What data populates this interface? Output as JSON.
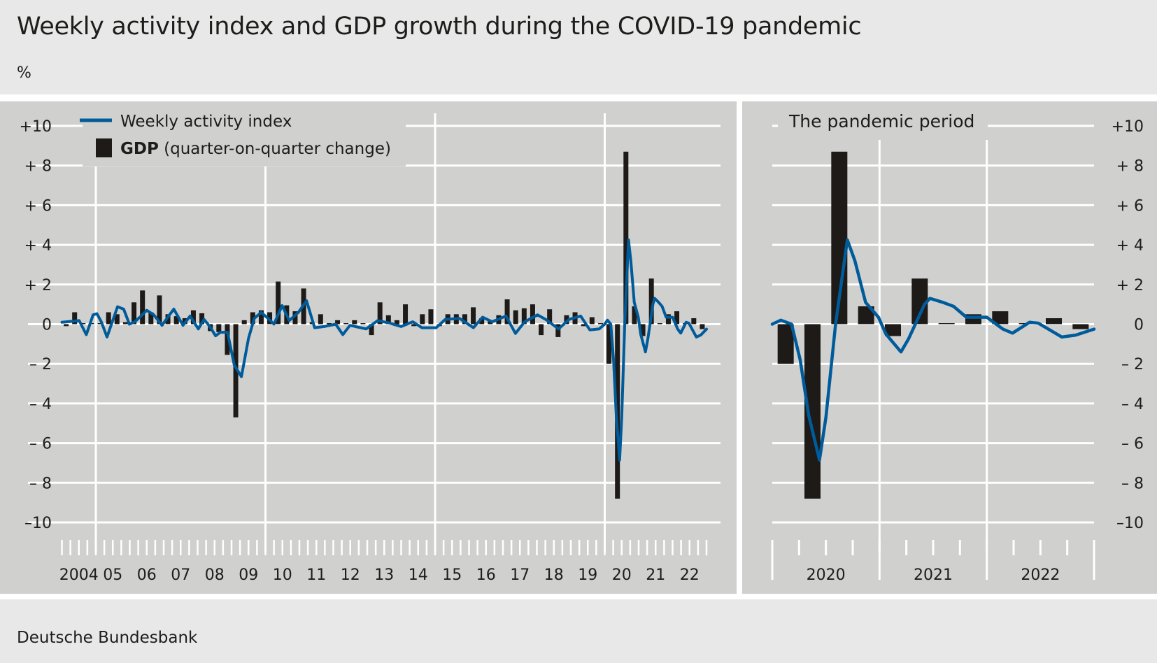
{
  "title": "Weekly activity index and GDP growth during the COVID-19 pandemic",
  "unit": "%",
  "source": "Deutsche Bundesbank",
  "colors": {
    "weekly_index": "#005b9a",
    "gdp": "#1d1a17",
    "panel_bg": "#d0d0cf",
    "page_bg": "#e8e8e8",
    "grid": "#ffffff"
  },
  "chart_data": [
    {
      "type": "bar+line",
      "legend": {
        "line_label": "Weekly activity index",
        "bar_label_bold": "GDP",
        "bar_label_rest": " (quarter-on-quarter change)",
        "placement": "top-left"
      },
      "ylim": [
        -10,
        10
      ],
      "y_ticks": [
        10,
        8,
        6,
        4,
        2,
        0,
        -2,
        -4,
        -6,
        -8,
        -10
      ],
      "y_tick_labels": [
        "+10",
        "+  8",
        "+  6",
        "+  4",
        "+  2",
        "0",
        "–  2",
        "–  4",
        "–  6",
        "–  8",
        "–10"
      ],
      "xlim": [
        2004,
        2023
      ],
      "x_tick_labels": [
        "2004",
        "05",
        "06",
        "07",
        "08",
        "09",
        "10",
        "11",
        "12",
        "13",
        "14",
        "15",
        "16",
        "17",
        "18",
        "19",
        "20",
        "21",
        "22"
      ],
      "grid": true,
      "gdp_quarters_start": "2004 Q1",
      "gdp": [
        -0.1,
        0.6,
        0,
        0,
        0,
        0.6,
        0.5,
        0.1,
        1.1,
        1.7,
        0.6,
        1.45,
        0.5,
        0.4,
        0.3,
        0.7,
        0.55,
        -0.35,
        -0.4,
        -1.55,
        -4.7,
        0.2,
        0.6,
        0.7,
        0.6,
        2.15,
        0.95,
        0.65,
        1.8,
        0.1,
        0.5,
        0,
        0.2,
        0,
        0.2,
        0,
        -0.55,
        1.1,
        0.45,
        0.2,
        1.0,
        -0.1,
        0.5,
        0.75,
        -0.1,
        0.5,
        0.5,
        0.5,
        0.85,
        0.3,
        0.2,
        0.45,
        1.25,
        0.7,
        0.8,
        1.0,
        -0.55,
        0.75,
        -0.65,
        0.45,
        0.6,
        -0.1,
        0.35,
        0,
        -2.0,
        -8.8,
        8.7,
        0.9,
        -0.6,
        2.3,
        0.05,
        0.5,
        0.65,
        0.05,
        0.3,
        -0.25
      ],
      "weekly_index": [
        [
          2004.0,
          0.1
        ],
        [
          2004.51,
          0.18
        ],
        [
          2004.72,
          -0.53
        ],
        [
          2004.92,
          0.47
        ],
        [
          2005.03,
          0.53
        ],
        [
          2005.16,
          0.12
        ],
        [
          2005.33,
          -0.65
        ],
        [
          2005.64,
          0.88
        ],
        [
          2005.82,
          0.76
        ],
        [
          2005.99,
          0
        ],
        [
          2006.15,
          0.12
        ],
        [
          2006.33,
          0.41
        ],
        [
          2006.5,
          0.7
        ],
        [
          2006.71,
          0.47
        ],
        [
          2006.95,
          -0.06
        ],
        [
          2007.12,
          0.35
        ],
        [
          2007.3,
          0.76
        ],
        [
          2007.57,
          -0.06
        ],
        [
          2007.78,
          0.41
        ],
        [
          2008.02,
          -0.24
        ],
        [
          2008.19,
          0.24
        ],
        [
          2008.36,
          -0.12
        ],
        [
          2008.53,
          -0.59
        ],
        [
          2008.67,
          -0.41
        ],
        [
          2008.88,
          -0.41
        ],
        [
          2009.08,
          -2.06
        ],
        [
          2009.29,
          -2.65
        ],
        [
          2009.5,
          -0.71
        ],
        [
          2009.67,
          0.29
        ],
        [
          2009.87,
          0.59
        ],
        [
          2010.08,
          0.29
        ],
        [
          2010.25,
          0
        ],
        [
          2010.49,
          0.94
        ],
        [
          2010.7,
          0.18
        ],
        [
          2010.97,
          0.59
        ],
        [
          2011.21,
          1.18
        ],
        [
          2011.45,
          -0.18
        ],
        [
          2011.73,
          -0.12
        ],
        [
          2012.07,
          0
        ],
        [
          2012.28,
          -0.53
        ],
        [
          2012.49,
          -0.06
        ],
        [
          2012.97,
          -0.24
        ],
        [
          2013.31,
          0.18
        ],
        [
          2013.65,
          0.06
        ],
        [
          2014.0,
          -0.12
        ],
        [
          2014.34,
          0.12
        ],
        [
          2014.61,
          -0.18
        ],
        [
          2015.03,
          -0.18
        ],
        [
          2015.3,
          0.24
        ],
        [
          2015.72,
          0.29
        ],
        [
          2016.13,
          -0.18
        ],
        [
          2016.4,
          0.35
        ],
        [
          2016.68,
          0.12
        ],
        [
          2017.09,
          0.41
        ],
        [
          2017.37,
          -0.47
        ],
        [
          2017.64,
          0.12
        ],
        [
          2018.02,
          0.47
        ],
        [
          2018.26,
          0.24
        ],
        [
          2018.64,
          -0.24
        ],
        [
          2018.95,
          0.24
        ],
        [
          2019.29,
          0.41
        ],
        [
          2019.56,
          -0.29
        ],
        [
          2019.84,
          -0.24
        ],
        [
          2020.0,
          0
        ],
        [
          2020.08,
          0.2
        ],
        [
          2020.18,
          0
        ],
        [
          2020.26,
          -1.8
        ],
        [
          2020.34,
          -4.6
        ],
        [
          2020.44,
          -6.85
        ],
        [
          2020.5,
          -4.7
        ],
        [
          2020.59,
          0
        ],
        [
          2020.7,
          4.25
        ],
        [
          2020.77,
          3.2
        ],
        [
          2020.87,
          1.1
        ],
        [
          2020.99,
          0.35
        ],
        [
          2021.06,
          -0.5
        ],
        [
          2021.2,
          -1.4
        ],
        [
          2021.27,
          -0.75
        ],
        [
          2021.42,
          1.0
        ],
        [
          2021.47,
          1.3
        ],
        [
          2021.59,
          1.1
        ],
        [
          2021.69,
          0.9
        ],
        [
          2021.81,
          0.35
        ],
        [
          2022.0,
          0.35
        ],
        [
          2022.15,
          -0.25
        ],
        [
          2022.24,
          -0.45
        ],
        [
          2022.4,
          0.1
        ],
        [
          2022.48,
          0.05
        ],
        [
          2022.7,
          -0.65
        ],
        [
          2022.83,
          -0.55
        ],
        [
          2023.0,
          -0.25
        ]
      ]
    },
    {
      "type": "bar+line",
      "title": "The pandemic period",
      "ylim": [
        -10,
        10
      ],
      "xlim": [
        2020,
        2023
      ],
      "x_tick_labels": [
        "2020",
        "2021",
        "2022"
      ],
      "grid": true,
      "gdp_quarters_start": "2020 Q1",
      "gdp": [
        -2.0,
        -8.8,
        8.7,
        0.9,
        -0.6,
        2.3,
        0.05,
        0.5,
        0.65,
        0.05,
        0.3,
        -0.25
      ]
    }
  ]
}
